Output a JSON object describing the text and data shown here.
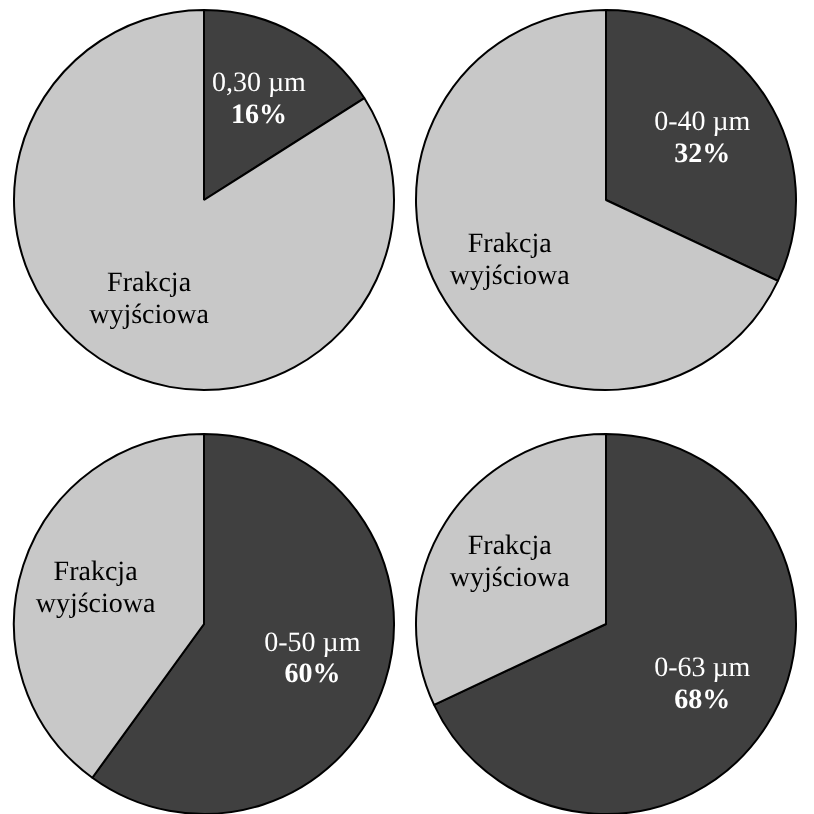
{
  "chart_data": [
    {
      "type": "pie",
      "categories": [
        "0,30 µm",
        "Frakcja wyjściowa"
      ],
      "values": [
        16,
        84
      ],
      "value_labels": [
        "16%",
        null
      ],
      "colors": [
        "#404040",
        "#c8c8c8"
      ],
      "legend": false
    },
    {
      "type": "pie",
      "categories": [
        "0-40 µm",
        "Frakcja wyjściowa"
      ],
      "values": [
        32,
        68
      ],
      "value_labels": [
        "32%",
        null
      ],
      "colors": [
        "#404040",
        "#c8c8c8"
      ],
      "legend": false
    },
    {
      "type": "pie",
      "categories": [
        "0-50 µm",
        "Frakcja wyjściowa"
      ],
      "values": [
        60,
        40
      ],
      "value_labels": [
        "60%",
        null
      ],
      "colors": [
        "#404040",
        "#c8c8c8"
      ],
      "legend": false
    },
    {
      "type": "pie",
      "categories": [
        "0-63 µm",
        "Frakcja wyjściowa"
      ],
      "values": [
        68,
        32
      ],
      "value_labels": [
        "68%",
        null
      ],
      "colors": [
        "#404040",
        "#c8c8c8"
      ],
      "legend": false
    }
  ]
}
